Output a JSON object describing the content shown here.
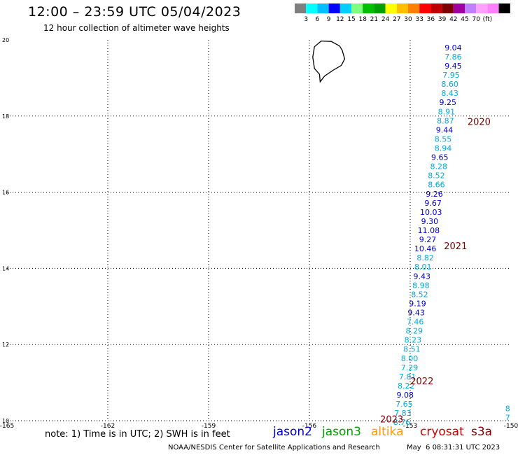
{
  "header": {
    "title": "12:00 – 23:59 UTC 05/04/2023",
    "subtitle": "12 hour collection of altimeter wave heights"
  },
  "colorbar": {
    "colors": [
      "#7f7f7f",
      "#00ffff",
      "#00bfff",
      "#0000ff",
      "#00cfff",
      "#7fff7f",
      "#00bf00",
      "#009f00",
      "#ffff00",
      "#ffbf00",
      "#ff7f00",
      "#ff0000",
      "#bf0000",
      "#7f0000",
      "#9f009f",
      "#bf7fff",
      "#ffa0ff",
      "#ff80ff",
      "#000000"
    ],
    "labels": [
      "3",
      "6",
      "9",
      "12",
      "15",
      "18",
      "21",
      "24",
      "27",
      "30",
      "33",
      "36",
      "39",
      "42",
      "45",
      "70",
      "(ft)"
    ]
  },
  "chart_data": {
    "type": "scatter",
    "xlim": [
      -165,
      -150
    ],
    "ylim": [
      10,
      20
    ],
    "x_ticks": [
      "-165",
      "-162",
      "-159",
      "-156",
      "-153",
      "-150"
    ],
    "y_ticks": [
      "10",
      "12",
      "14",
      "16",
      "18",
      "20"
    ],
    "grid": true,
    "points": [
      {
        "lon": -151.72,
        "lat": 19.8,
        "label": "9.04",
        "color": "#0000cc"
      },
      {
        "lon": -151.72,
        "lat": 19.56,
        "label": "7.86",
        "color": "#00aadd"
      },
      {
        "lon": -151.72,
        "lat": 19.32,
        "label": "9.45",
        "color": "#0000cc"
      },
      {
        "lon": -151.78,
        "lat": 19.08,
        "label": "7.95",
        "color": "#00aadd"
      },
      {
        "lon": -151.82,
        "lat": 18.84,
        "label": "8.60",
        "color": "#00aadd"
      },
      {
        "lon": -151.82,
        "lat": 18.6,
        "label": "8.43",
        "color": "#00aadd"
      },
      {
        "lon": -151.88,
        "lat": 18.36,
        "label": "9.25",
        "color": "#0000cc"
      },
      {
        "lon": -151.92,
        "lat": 18.12,
        "label": "8.91",
        "color": "#00aadd"
      },
      {
        "lon": -151.95,
        "lat": 17.88,
        "label": "8.87",
        "color": "#00aadd"
      },
      {
        "lon": -151.98,
        "lat": 17.64,
        "label": "9.44",
        "color": "#0000cc"
      },
      {
        "lon": -152.02,
        "lat": 17.4,
        "label": "8.55",
        "color": "#00aadd"
      },
      {
        "lon": -152.02,
        "lat": 17.16,
        "label": "8.94",
        "color": "#00aadd"
      },
      {
        "lon": -152.12,
        "lat": 16.92,
        "label": "9.65",
        "color": "#0000cc"
      },
      {
        "lon": -152.15,
        "lat": 16.68,
        "label": "8.28",
        "color": "#00aadd"
      },
      {
        "lon": -152.22,
        "lat": 16.44,
        "label": "8.52",
        "color": "#00aadd"
      },
      {
        "lon": -152.22,
        "lat": 16.2,
        "label": "8.66",
        "color": "#00aadd"
      },
      {
        "lon": -152.28,
        "lat": 15.96,
        "label": "9.26",
        "color": "#0000cc"
      },
      {
        "lon": -152.32,
        "lat": 15.72,
        "label": "9.67",
        "color": "#0000cc"
      },
      {
        "lon": -152.38,
        "lat": 15.48,
        "label": "10.03",
        "color": "#0000cc"
      },
      {
        "lon": -152.42,
        "lat": 15.24,
        "label": "9.30",
        "color": "#0000cc"
      },
      {
        "lon": -152.45,
        "lat": 15.0,
        "label": "11.08",
        "color": "#0000cc"
      },
      {
        "lon": -152.48,
        "lat": 14.76,
        "label": "9.27",
        "color": "#0000cc"
      },
      {
        "lon": -152.55,
        "lat": 14.52,
        "label": "10.46",
        "color": "#0000cc"
      },
      {
        "lon": -152.55,
        "lat": 14.28,
        "label": "8.82",
        "color": "#00aadd"
      },
      {
        "lon": -152.62,
        "lat": 14.04,
        "label": "8.01",
        "color": "#00aadd"
      },
      {
        "lon": -152.65,
        "lat": 13.8,
        "label": "9.43",
        "color": "#0000cc"
      },
      {
        "lon": -152.68,
        "lat": 13.56,
        "label": "8.98",
        "color": "#00aadd"
      },
      {
        "lon": -152.72,
        "lat": 13.32,
        "label": "8.52",
        "color": "#00aadd"
      },
      {
        "lon": -152.78,
        "lat": 13.08,
        "label": "9.19",
        "color": "#0000cc"
      },
      {
        "lon": -152.82,
        "lat": 12.84,
        "label": "9.43",
        "color": "#0000cc"
      },
      {
        "lon": -152.85,
        "lat": 12.6,
        "label": "7.46",
        "color": "#00aadd"
      },
      {
        "lon": -152.88,
        "lat": 12.36,
        "label": "8.29",
        "color": "#00aadd"
      },
      {
        "lon": -152.92,
        "lat": 12.12,
        "label": "8.23",
        "color": "#00aadd"
      },
      {
        "lon": -152.95,
        "lat": 11.88,
        "label": "8.51",
        "color": "#00aadd"
      },
      {
        "lon": -153.02,
        "lat": 11.64,
        "label": "8.00",
        "color": "#00aadd"
      },
      {
        "lon": -153.02,
        "lat": 11.4,
        "label": "7.29",
        "color": "#00aadd"
      },
      {
        "lon": -153.08,
        "lat": 11.16,
        "label": "7.81",
        "color": "#00aadd"
      },
      {
        "lon": -153.12,
        "lat": 10.92,
        "label": "8.22",
        "color": "#00aadd"
      },
      {
        "lon": -153.15,
        "lat": 10.68,
        "label": "9.08",
        "color": "#0000cc"
      },
      {
        "lon": -153.18,
        "lat": 10.44,
        "label": "7.65",
        "color": "#00aadd"
      },
      {
        "lon": -153.22,
        "lat": 10.2,
        "label": "7.83",
        "color": "#00aadd"
      },
      {
        "lon": -153.25,
        "lat": 9.96,
        "label": "8.76",
        "color": "#00aadd"
      },
      {
        "lon": -150.1,
        "lat": 10.32,
        "label": "8",
        "color": "#00aadd"
      },
      {
        "lon": -150.1,
        "lat": 10.08,
        "label": "7",
        "color": "#00aadd"
      }
    ],
    "time_labels": [
      {
        "lon": -150.95,
        "lat": 17.86,
        "label": "2020"
      },
      {
        "lon": -151.65,
        "lat": 14.6,
        "label": "2021"
      },
      {
        "lon": -152.65,
        "lat": 11.05,
        "label": "2022"
      },
      {
        "lon": -153.55,
        "lat": 10.05,
        "label": "2023"
      }
    ],
    "coastline": [
      [
        -155.1,
        19.84
      ],
      [
        -155.35,
        19.96
      ],
      [
        -155.65,
        19.97
      ],
      [
        -155.85,
        19.82
      ],
      [
        -155.9,
        19.55
      ],
      [
        -155.85,
        19.25
      ],
      [
        -155.7,
        19.1
      ],
      [
        -155.68,
        18.9
      ],
      [
        -155.55,
        19.05
      ],
      [
        -155.3,
        19.2
      ],
      [
        -155.05,
        19.33
      ],
      [
        -154.95,
        19.5
      ],
      [
        -155.02,
        19.72
      ],
      [
        -155.1,
        19.84
      ]
    ]
  },
  "footer": {
    "note": "note: 1) Time is in UTC; 2) SWH is in feet",
    "satellites": [
      {
        "name": "jason2",
        "color": "#0000cc"
      },
      {
        "name": "jason3",
        "color": "#00a000"
      },
      {
        "name": "altika",
        "color": "#ff9900"
      },
      {
        "name": "cryosat",
        "color": "#cc0000"
      },
      {
        "name": "s3a",
        "color": "#880000"
      }
    ],
    "credit": "NOAA/NESDIS Center for Satellite Applications and Research",
    "timestamp": "May  6 08:31:31 UTC 2023"
  }
}
